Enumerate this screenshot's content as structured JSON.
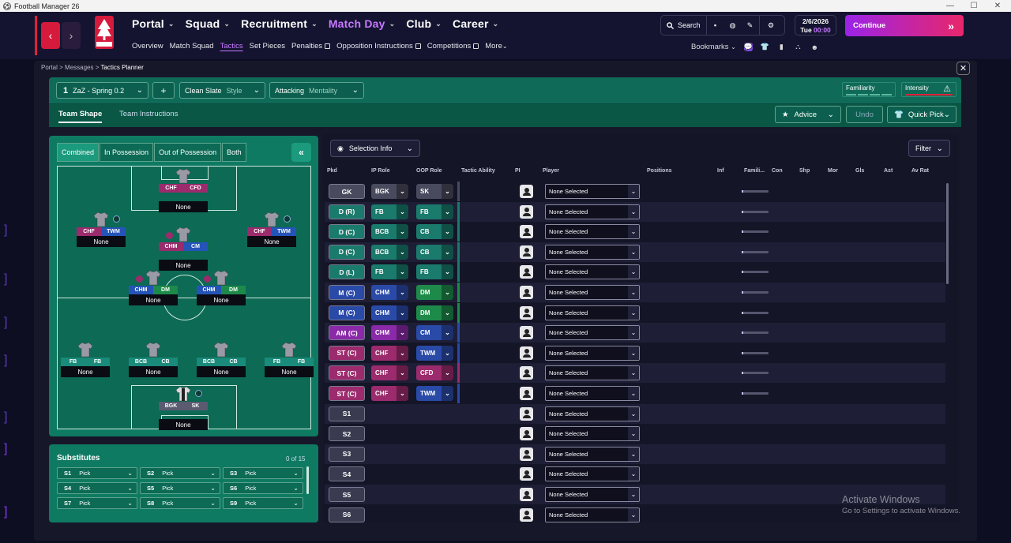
{
  "window": {
    "title": "Football Manager 26",
    "min_icon": "minimize-icon",
    "max_icon": "maximize-icon",
    "close_icon": "close-icon"
  },
  "nav": {
    "main": [
      {
        "label": "Portal",
        "color": "#ffffff"
      },
      {
        "label": "Squad",
        "color": "#ffffff"
      },
      {
        "label": "Recruitment",
        "color": "#ffffff"
      },
      {
        "label": "Match Day",
        "color": "#c878ff"
      },
      {
        "label": "Club",
        "color": "#ffffff"
      },
      {
        "label": "Career",
        "color": "#ffffff"
      }
    ],
    "sub": [
      {
        "label": "Overview"
      },
      {
        "label": "Match Squad"
      },
      {
        "label": "Tactics",
        "active": true
      },
      {
        "label": "Set Pieces"
      },
      {
        "label": "Penalties",
        "ext": true
      },
      {
        "label": "Opposition Instructions",
        "ext": true
      },
      {
        "label": "Competitions",
        "ext": true
      },
      {
        "label": "More"
      }
    ],
    "search_label": "Search",
    "date": "2/6/2026",
    "day": "Tue",
    "time": "00:00",
    "continue_label": "Continue",
    "bookmarks_label": "Bookmarks",
    "crest_text": "FOREST"
  },
  "breadcrumb": [
    "Portal",
    "Messages",
    "Tactics Planner"
  ],
  "tactic": {
    "number": "1",
    "name": "ZaZ - Spring 0.2",
    "style_value": "Clean Slate",
    "style_label": "Style",
    "mentality_value": "Attacking",
    "mentality_label": "Mentality",
    "familiarity_label": "Familiarity",
    "intensity_label": "Intensity"
  },
  "tabs": {
    "shape": "Team Shape",
    "instructions": "Team Instructions"
  },
  "actions": {
    "advice": "Advice",
    "undo": "Undo",
    "quick_pick": "Quick Pick"
  },
  "modes": [
    "Combined",
    "In Possession",
    "Out of Possession",
    "Both"
  ],
  "pitch_players": [
    {
      "id": "st",
      "r1": "CHF",
      "r2": "CFD",
      "c1": "#9b2b6c",
      "c2": "#9b2b6c",
      "name": "None"
    },
    {
      "id": "lw",
      "r1": "CHF",
      "r2": "TWM",
      "c1": "#9b2b6c",
      "c2": "#2454b8",
      "name": "None"
    },
    {
      "id": "am",
      "r1": "CHM",
      "r2": "CM",
      "c1": "#9b2b6c",
      "c2": "#2454b8",
      "name": "None"
    },
    {
      "id": "rw",
      "r1": "CHF",
      "r2": "TWM",
      "c1": "#9b2b6c",
      "c2": "#2454b8",
      "name": "None"
    },
    {
      "id": "lcm",
      "r1": "CHM",
      "r2": "DM",
      "c1": "#2454b8",
      "c2": "#1e8a4a",
      "name": "None"
    },
    {
      "id": "rcm",
      "r1": "CHM",
      "r2": "DM",
      "c1": "#2454b8",
      "c2": "#1e8a4a",
      "name": "None"
    },
    {
      "id": "lb",
      "r1": "FB",
      "r2": "FB",
      "c1": "#1a8a7a",
      "c2": "#1a8a7a",
      "name": "None"
    },
    {
      "id": "lcb",
      "r1": "BCB",
      "r2": "CB",
      "c1": "#1a8a7a",
      "c2": "#1a8a7a",
      "name": "None"
    },
    {
      "id": "rcb",
      "r1": "BCB",
      "r2": "CB",
      "c1": "#1a8a7a",
      "c2": "#1a8a7a",
      "name": "None"
    },
    {
      "id": "rb",
      "r1": "FB",
      "r2": "FB",
      "c1": "#1a8a7a",
      "c2": "#1a8a7a",
      "name": "None"
    },
    {
      "id": "gk",
      "r1": "BGK",
      "r2": "SK",
      "c1": "#5a5a70",
      "c2": "#5a5a70",
      "name": "None"
    }
  ],
  "subs": {
    "title": "Substitutes",
    "count": "0 of 15",
    "slots": [
      {
        "k": "S1",
        "v": "Pick"
      },
      {
        "k": "S2",
        "v": "Pick"
      },
      {
        "k": "S3",
        "v": "Pick"
      },
      {
        "k": "S4",
        "v": "Pick"
      },
      {
        "k": "S5",
        "v": "Pick"
      },
      {
        "k": "S6",
        "v": "Pick"
      },
      {
        "k": "S7",
        "v": "Pick"
      },
      {
        "k": "S8",
        "v": "Pick"
      },
      {
        "k": "S9",
        "v": "Pick"
      }
    ]
  },
  "table": {
    "selection_info": "Selection Info",
    "filter": "Filter",
    "headers": [
      "Pkd",
      "IP Role",
      "OOP Role",
      "Tactic Ability",
      "PI",
      "Player",
      "Positions",
      "Inf",
      "Famili...",
      "Con",
      "Shp",
      "Mor",
      "Gls",
      "Ast",
      "Av Rat"
    ],
    "rows": [
      {
        "pos": "GK",
        "pc": "#4a4a5e",
        "ip": "BGK",
        "ipc": "#4a4a5e",
        "oop": "SK",
        "oopc": "#4a4a5e",
        "player": "None Selected",
        "fam": true
      },
      {
        "pos": "D (R)",
        "pc": "#1a7a6c",
        "ip": "FB",
        "ipc": "#1a7a6c",
        "oop": "FB",
        "oopc": "#1a7a6c",
        "player": "None Selected",
        "fam": true
      },
      {
        "pos": "D (C)",
        "pc": "#1a7a6c",
        "ip": "BCB",
        "ipc": "#1a7a6c",
        "oop": "CB",
        "oopc": "#1a7a6c",
        "player": "None Selected",
        "fam": true
      },
      {
        "pos": "D (C)",
        "pc": "#1a7a6c",
        "ip": "BCB",
        "ipc": "#1a7a6c",
        "oop": "CB",
        "oopc": "#1a7a6c",
        "player": "None Selected",
        "fam": true
      },
      {
        "pos": "D (L)",
        "pc": "#1a7a6c",
        "ip": "FB",
        "ipc": "#1a7a6c",
        "oop": "FB",
        "oopc": "#1a7a6c",
        "player": "None Selected",
        "fam": true
      },
      {
        "pos": "M (C)",
        "pc": "#2a4aa8",
        "ip": "CHM",
        "ipc": "#2a4aa8",
        "oop": "DM",
        "oopc": "#1e8a4a",
        "player": "None Selected",
        "fam": true
      },
      {
        "pos": "M (C)",
        "pc": "#2a4aa8",
        "ip": "CHM",
        "ipc": "#2a4aa8",
        "oop": "DM",
        "oopc": "#1e8a4a",
        "player": "None Selected",
        "fam": true
      },
      {
        "pos": "AM (C)",
        "pc": "#8a2aa8",
        "ip": "CHM",
        "ipc": "#8a2aa8",
        "oop": "CM",
        "oopc": "#2a4aa8",
        "player": "None Selected",
        "fam": true
      },
      {
        "pos": "ST (C)",
        "pc": "#9b2b6c",
        "ip": "CHF",
        "ipc": "#9b2b6c",
        "oop": "TWM",
        "oopc": "#2a4aa8",
        "player": "None Selected",
        "fam": true
      },
      {
        "pos": "ST (C)",
        "pc": "#9b2b6c",
        "ip": "CHF",
        "ipc": "#9b2b6c",
        "oop": "CFD",
        "oopc": "#9b2b6c",
        "player": "None Selected",
        "fam": true
      },
      {
        "pos": "ST (C)",
        "pc": "#9b2b6c",
        "ip": "CHF",
        "ipc": "#9b2b6c",
        "oop": "TWM",
        "oopc": "#2a4aa8",
        "player": "None Selected",
        "fam": true
      },
      {
        "pos": "S1",
        "pc": "#3a3a50",
        "player": "None Selected"
      },
      {
        "pos": "S2",
        "pc": "#3a3a50",
        "player": "None Selected"
      },
      {
        "pos": "S3",
        "pc": "#3a3a50",
        "player": "None Selected"
      },
      {
        "pos": "S4",
        "pc": "#3a3a50",
        "player": "None Selected"
      },
      {
        "pos": "S5",
        "pc": "#3a3a50",
        "player": "None Selected"
      },
      {
        "pos": "S6",
        "pc": "#3a3a50",
        "player": "None Selected"
      }
    ]
  },
  "watermark": {
    "line1": "Activate Windows",
    "line2": "Go to Settings to activate Windows."
  }
}
